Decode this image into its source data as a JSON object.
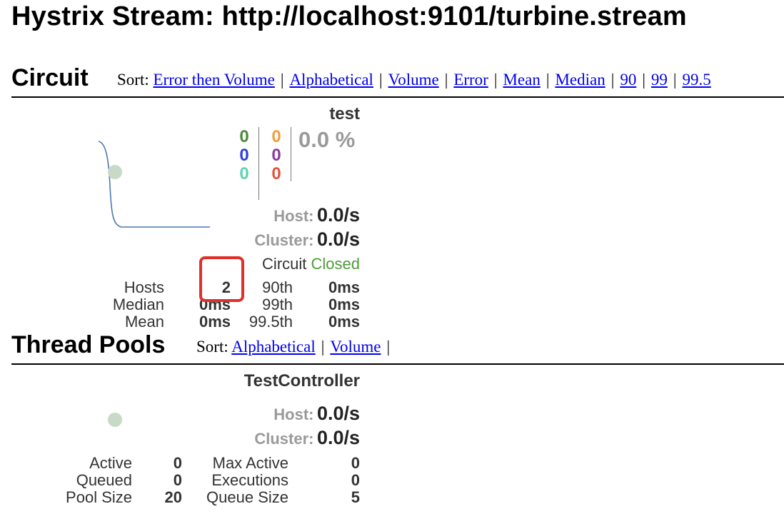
{
  "page_title": "Hystrix Stream: http://localhost:9101/turbine.stream",
  "circuit_section": {
    "title": "Circuit",
    "sort_label": "Sort:",
    "sort_links": [
      "Error then Volume",
      "Alphabetical",
      "Volume",
      "Error",
      "Mean",
      "Median",
      "90",
      "99",
      "99.5"
    ]
  },
  "circuit": {
    "name": "test",
    "counts_left": [
      "0",
      "0",
      "0"
    ],
    "counts_right": [
      "0",
      "0",
      "0"
    ],
    "count_colors_left": [
      "#4b8a3b",
      "#2f3ee0",
      "#5fd3b3"
    ],
    "count_colors_right": [
      "#f0a03c",
      "#8b3a9c",
      "#e2533a"
    ],
    "error_percentage": "0.0 %",
    "host_label": "Host:",
    "host_rate": "0.0/s",
    "cluster_label": "Cluster:",
    "cluster_rate": "0.0/s",
    "circuit_label": "Circuit",
    "circuit_status": "Closed",
    "stats": {
      "hosts_label": "Hosts",
      "hosts_value": "2",
      "median_label": "Median",
      "median_value": "0ms",
      "mean_label": "Mean",
      "mean_value": "0ms",
      "p90_label": "90th",
      "p90_value": "0ms",
      "p99_label": "99th",
      "p99_value": "0ms",
      "p995_label": "99.5th",
      "p995_value": "0ms"
    },
    "status_color": "#4e9a3a",
    "highlight_color": "#e0302a"
  },
  "thread_pools_section": {
    "title": "Thread Pools",
    "sort_label": "Sort:",
    "sort_links": [
      "Alphabetical",
      "Volume"
    ]
  },
  "thread_pool": {
    "name": "TestController",
    "host_label": "Host:",
    "host_rate": "0.0/s",
    "cluster_label": "Cluster:",
    "cluster_rate": "0.0/s",
    "stats": {
      "active_label": "Active",
      "active_value": "0",
      "queued_label": "Queued",
      "queued_value": "0",
      "pool_size_label": "Pool Size",
      "pool_size_value": "20",
      "max_active_label": "Max Active",
      "max_active_value": "0",
      "executions_label": "Executions",
      "executions_value": "0",
      "queue_size_label": "Queue Size",
      "queue_size_value": "5"
    }
  }
}
